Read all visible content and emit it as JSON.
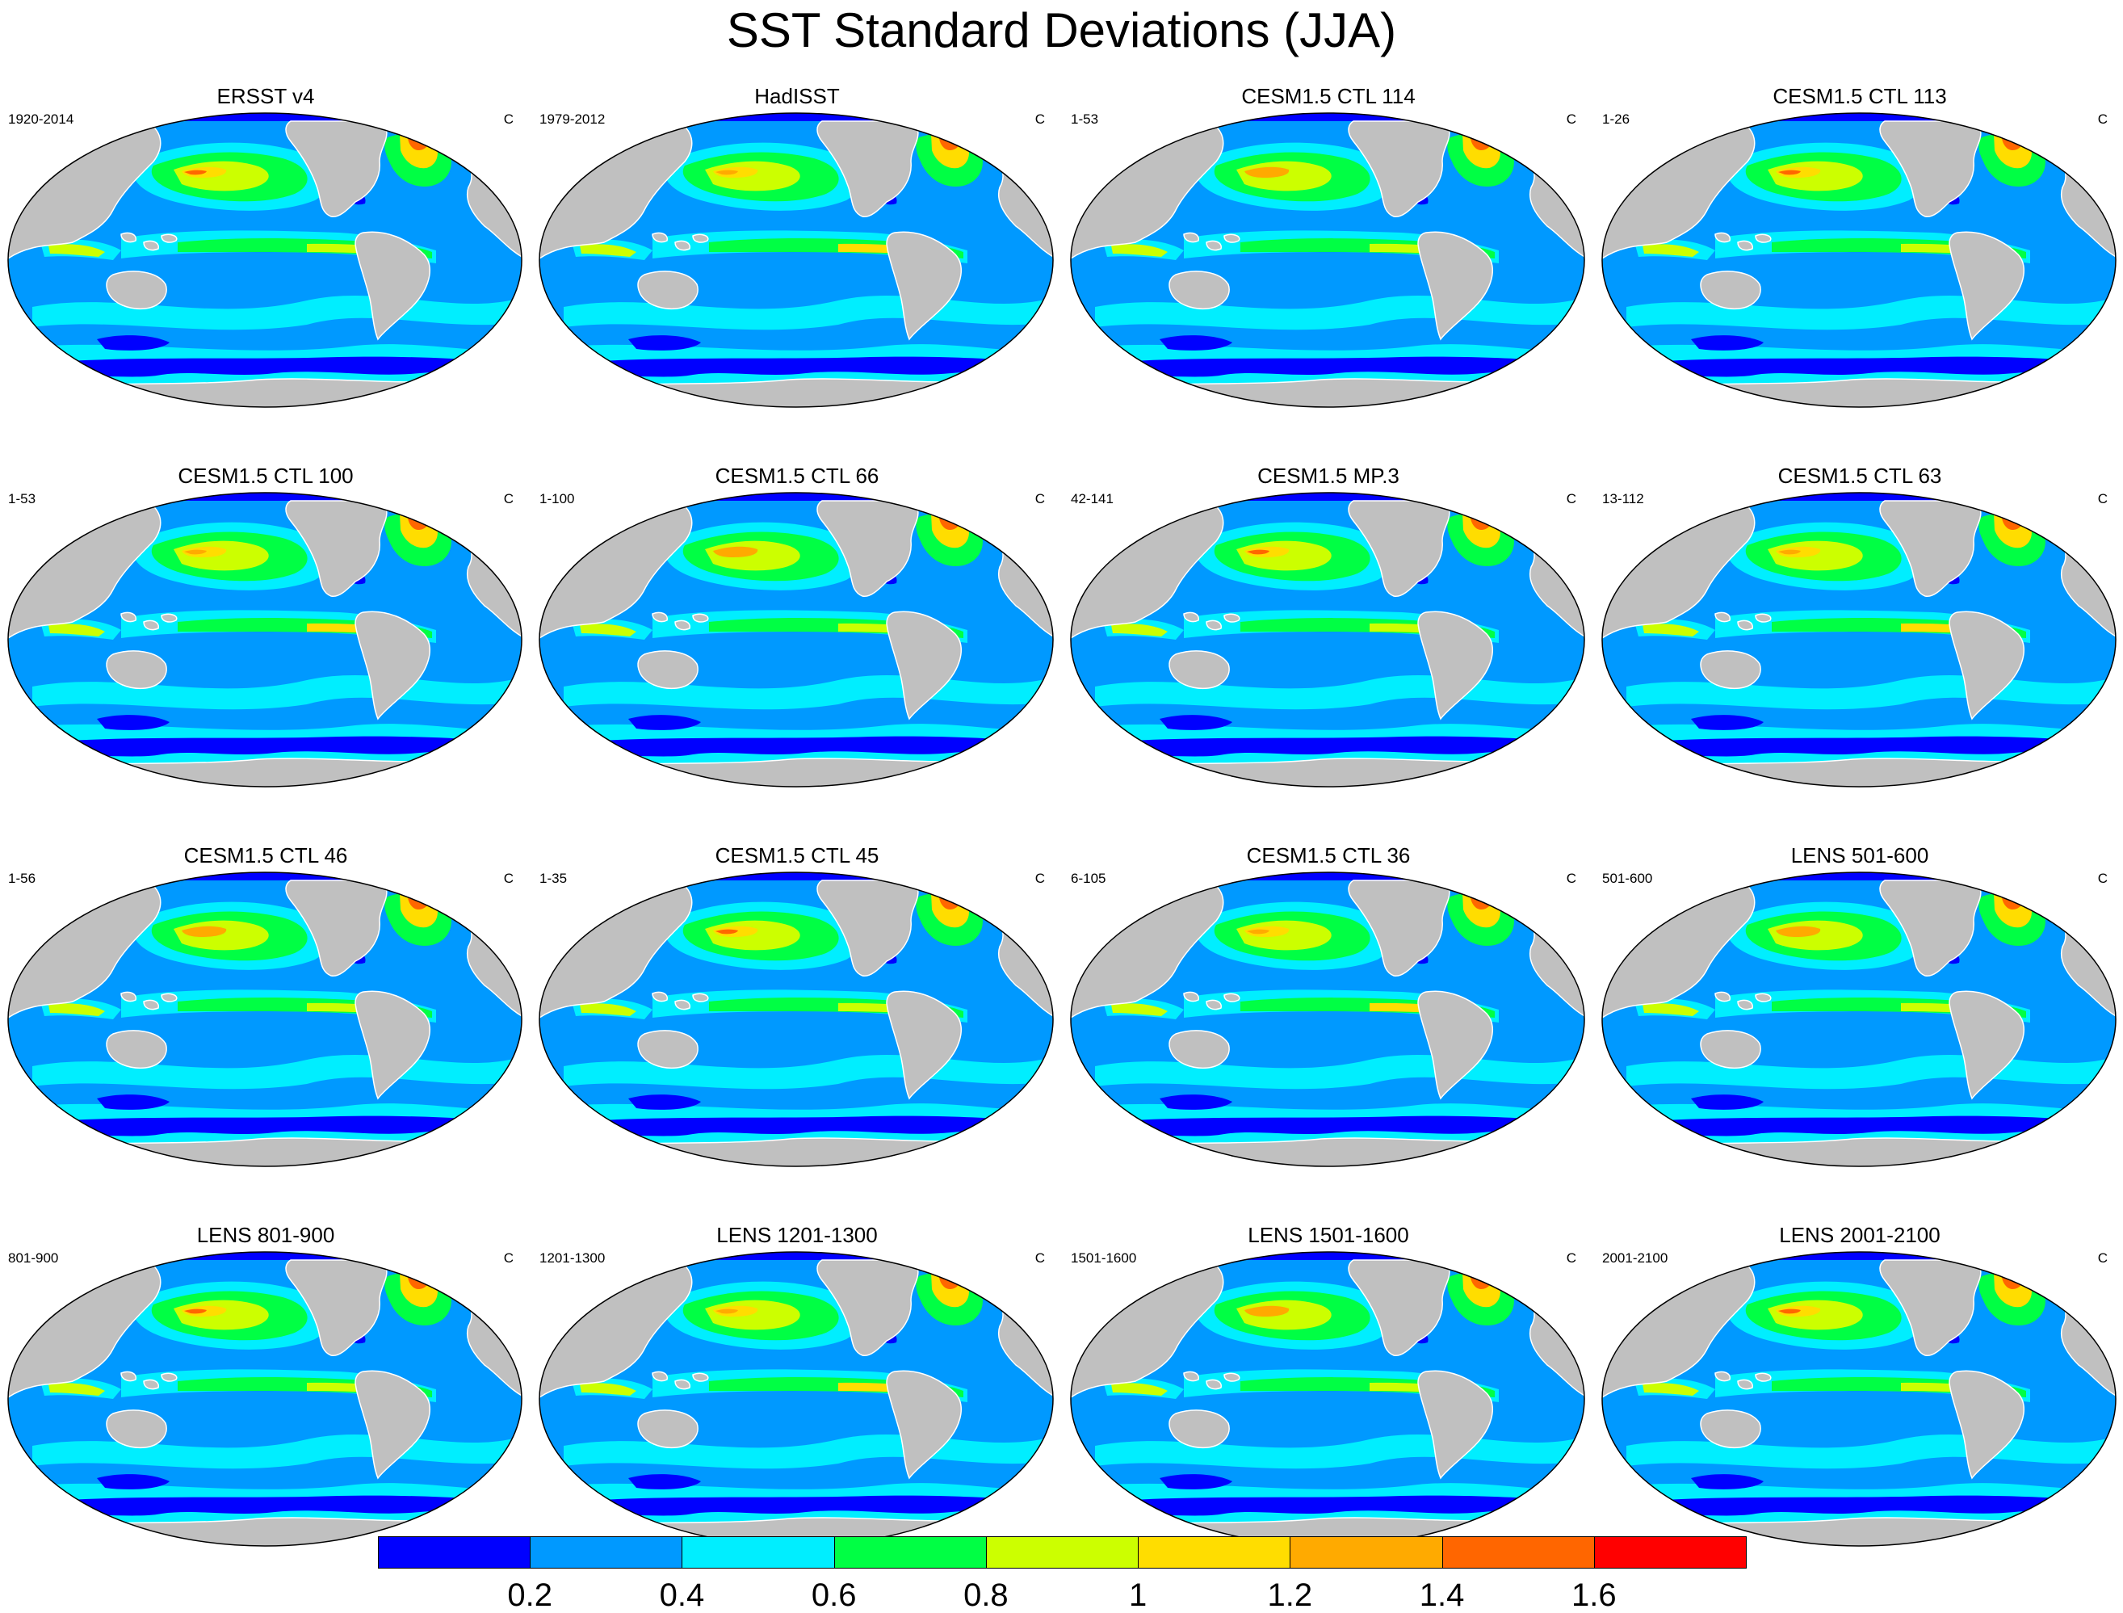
{
  "title": "SST Standard Deviations (JJA)",
  "colors": {
    "land": "#c0c0c0",
    "ice": "#0000ff",
    "levels": [
      "#0000ff",
      "#0099ff",
      "#00eeff",
      "#00ff44",
      "#ccff00",
      "#ffdd00",
      "#ffaa00",
      "#ff6600",
      "#ff0000"
    ],
    "outline": "#000000"
  },
  "panels": [
    {
      "title": "ERSST v4",
      "left": "1920-2014",
      "right": "C"
    },
    {
      "title": "HadISST",
      "left": "1979-2012",
      "right": "C"
    },
    {
      "title": "CESM1.5 CTL 114",
      "left": "1-53",
      "right": "C"
    },
    {
      "title": "CESM1.5 CTL 113",
      "left": "1-26",
      "right": "C"
    },
    {
      "title": "CESM1.5 CTL 100",
      "left": "1-53",
      "right": "C"
    },
    {
      "title": "CESM1.5 CTL 66",
      "left": "1-100",
      "right": "C"
    },
    {
      "title": "CESM1.5 MP.3",
      "left": "42-141",
      "right": "C"
    },
    {
      "title": "CESM1.5 CTL 63",
      "left": "13-112",
      "right": "C"
    },
    {
      "title": "CESM1.5 CTL 46",
      "left": "1-56",
      "right": "C"
    },
    {
      "title": "CESM1.5 CTL 45",
      "left": "1-35",
      "right": "C"
    },
    {
      "title": "CESM1.5 CTL 36",
      "left": "6-105",
      "right": "C"
    },
    {
      "title": "LENS 501-600",
      "left": "501-600",
      "right": "C"
    },
    {
      "title": "LENS 801-900",
      "left": "801-900",
      "right": "C"
    },
    {
      "title": "LENS 1201-1300",
      "left": "1201-1300",
      "right": "C"
    },
    {
      "title": "LENS 1501-1600",
      "left": "1501-1600",
      "right": "C"
    },
    {
      "title": "LENS 2001-2100",
      "left": "2001-2100",
      "right": "C"
    }
  ],
  "colorbar": {
    "labels": [
      "0.2",
      "0.4",
      "0.6",
      "0.8",
      "1",
      "1.2",
      "1.4",
      "1.6"
    ]
  }
}
